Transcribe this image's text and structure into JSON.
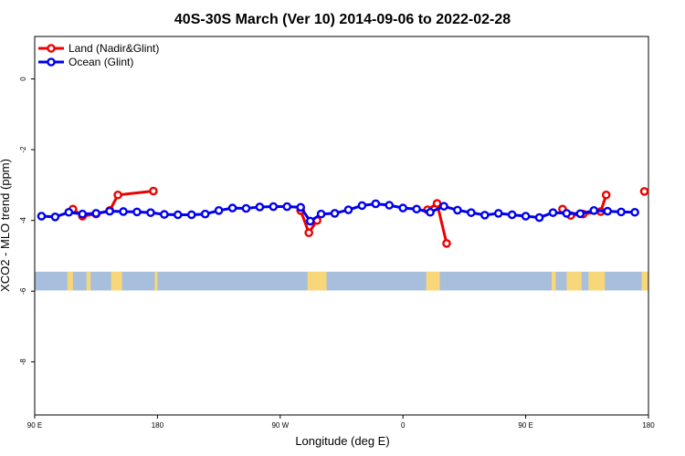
{
  "chart_data": {
    "type": "line",
    "title": "40S-30S March (Ver 10)   2014-09-06 to 2022-02-28",
    "xlabel": "Longitude (deg E)",
    "ylabel": "XCO2 - MLO trend (ppm)",
    "xlim": [
      90,
      540
    ],
    "ylim": [
      -9.5,
      1.2
    ],
    "x_ticks": [
      {
        "value": 90,
        "label": "90 E"
      },
      {
        "value": 180,
        "label": "180"
      },
      {
        "value": 270,
        "label": "90 W"
      },
      {
        "value": 360,
        "label": "0"
      },
      {
        "value": 450,
        "label": "90 E"
      },
      {
        "value": 540,
        "label": "180"
      }
    ],
    "y_ticks": [
      {
        "value": 0,
        "label": "0"
      },
      {
        "value": -2,
        "label": "-2"
      },
      {
        "value": -4,
        "label": "-4"
      },
      {
        "value": -6,
        "label": "-6"
      },
      {
        "value": -8,
        "label": "-8"
      }
    ],
    "legend_position": "top-left",
    "series": [
      {
        "name": "Land (Nadir&Glint)",
        "color": "#ee0000",
        "segments": [
          [
            [
              118,
              -3.68
            ],
            [
              125,
              -3.88
            ],
            [
              135,
              -3.82
            ],
            [
              145,
              -3.72
            ],
            [
              151,
              -3.28
            ],
            [
              177,
              -3.17
            ]
          ],
          [
            [
              285,
              -3.72
            ],
            [
              291,
              -4.35
            ],
            [
              297,
              -4.0
            ]
          ],
          [
            [
              378,
              -3.7
            ],
            [
              385,
              -3.52
            ],
            [
              392,
              -4.65
            ]
          ],
          [
            [
              477,
              -3.68
            ],
            [
              483,
              -3.86
            ],
            [
              492,
              -3.82
            ],
            [
              505,
              -3.75
            ],
            [
              509,
              -3.28
            ]
          ],
          [
            [
              537,
              -3.18
            ]
          ]
        ]
      },
      {
        "name": "Ocean (Glint)",
        "color": "#0000ee",
        "points": [
          [
            95,
            -3.88
          ],
          [
            105,
            -3.9
          ],
          [
            115,
            -3.77
          ],
          [
            125,
            -3.82
          ],
          [
            135,
            -3.8
          ],
          [
            145,
            -3.74
          ],
          [
            155,
            -3.75
          ],
          [
            165,
            -3.76
          ],
          [
            175,
            -3.78
          ],
          [
            185,
            -3.83
          ],
          [
            195,
            -3.84
          ],
          [
            205,
            -3.84
          ],
          [
            215,
            -3.82
          ],
          [
            225,
            -3.72
          ],
          [
            235,
            -3.65
          ],
          [
            245,
            -3.66
          ],
          [
            255,
            -3.62
          ],
          [
            265,
            -3.61
          ],
          [
            275,
            -3.61
          ],
          [
            285,
            -3.63
          ],
          [
            292,
            -4.02
          ],
          [
            300,
            -3.82
          ],
          [
            310,
            -3.8
          ],
          [
            320,
            -3.7
          ],
          [
            330,
            -3.58
          ],
          [
            340,
            -3.53
          ],
          [
            350,
            -3.57
          ],
          [
            360,
            -3.65
          ],
          [
            370,
            -3.68
          ],
          [
            380,
            -3.77
          ],
          [
            390,
            -3.6
          ],
          [
            400,
            -3.71
          ],
          [
            410,
            -3.78
          ],
          [
            420,
            -3.85
          ],
          [
            430,
            -3.8
          ],
          [
            440,
            -3.84
          ],
          [
            450,
            -3.88
          ],
          [
            460,
            -3.92
          ],
          [
            470,
            -3.78
          ],
          [
            480,
            -3.8
          ],
          [
            490,
            -3.81
          ],
          [
            500,
            -3.72
          ],
          [
            510,
            -3.74
          ],
          [
            520,
            -3.76
          ],
          [
            530,
            -3.77
          ]
        ]
      }
    ],
    "map_strip": {
      "y_range": [
        -5.98,
        -5.45
      ],
      "ocean_color": "#a7bedd",
      "land_color": "#f7d77a",
      "land_spans": [
        [
          [
            114,
            118
          ],
          [
            128,
            131
          ],
          [
            146,
            154
          ]
        ],
        [
          [
            178,
            180
          ]
        ],
        [
          [
            290,
            304
          ]
        ],
        [
          [
            377,
            387
          ]
        ],
        [
          [
            469,
            472
          ],
          [
            480,
            491
          ],
          [
            496,
            508
          ]
        ],
        [
          [
            535,
            540
          ]
        ]
      ]
    }
  }
}
